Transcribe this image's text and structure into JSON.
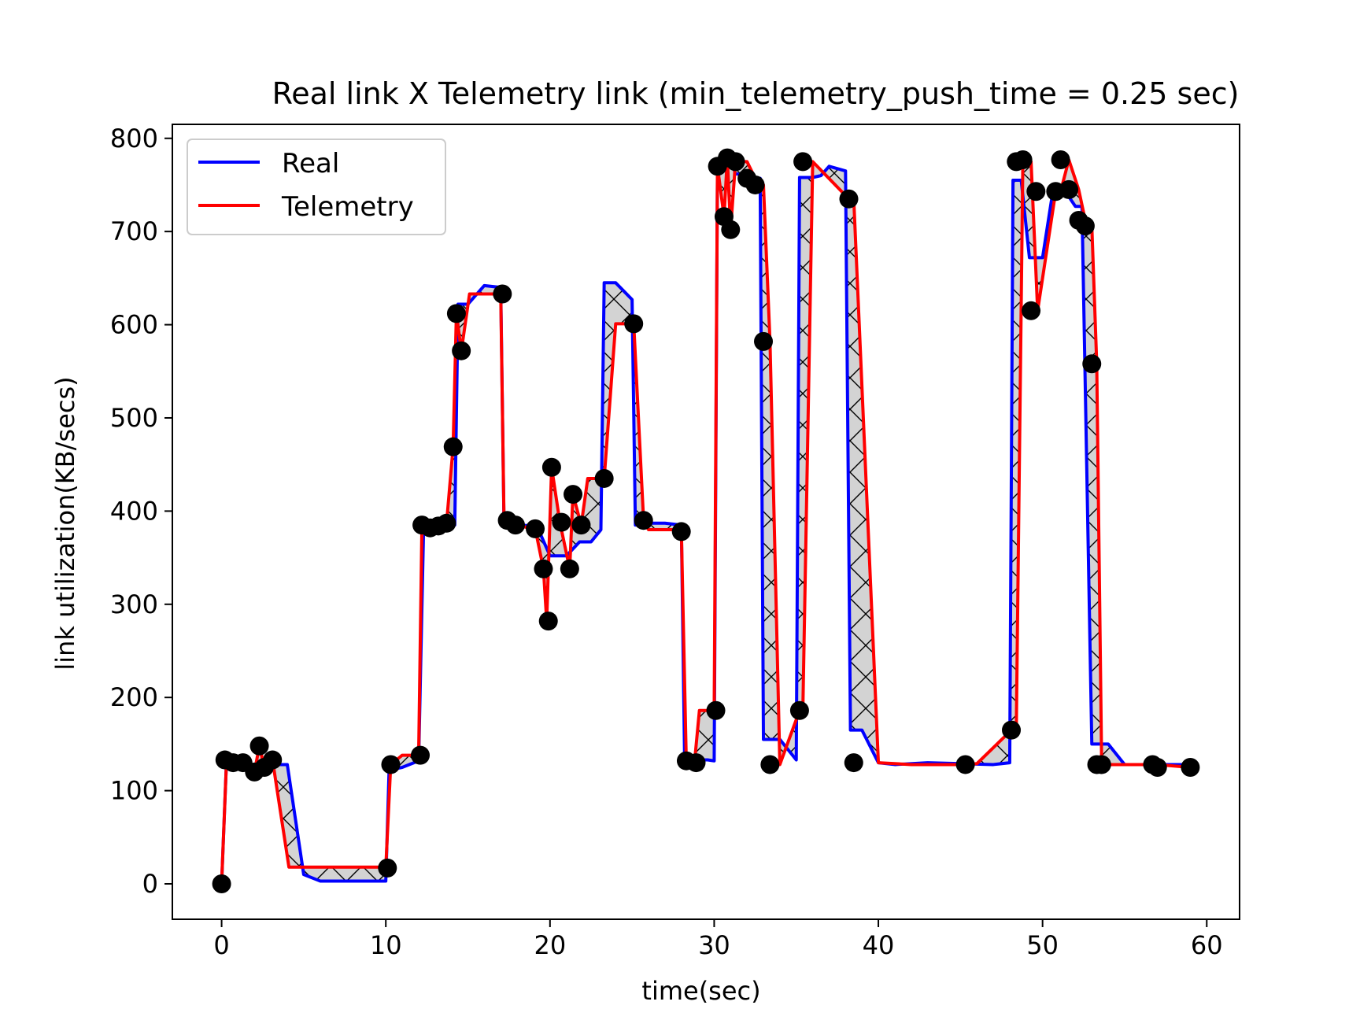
{
  "chart_data": {
    "type": "line",
    "title": "Real link X Telemetry link (min_telemetry_push_time = 0.25 sec)",
    "xlabel": "time(sec)",
    "ylabel": "link utilization(KB/secs)",
    "xlim": [
      -3,
      62
    ],
    "ylim": [
      -38,
      815
    ],
    "xticks": [
      0,
      10,
      20,
      30,
      40,
      50,
      60
    ],
    "yticks": [
      0,
      100,
      200,
      300,
      400,
      500,
      600,
      700,
      800
    ],
    "grid": false,
    "legend_position": "top-left",
    "fill_between": {
      "color": "#d3d3d3",
      "hatch": "x"
    },
    "series": [
      {
        "name": "Real",
        "color": "#0000ff",
        "x": [
          0,
          0.3,
          1,
          1.6,
          2.2,
          2.5,
          3.0,
          4.0,
          5.0,
          6.0,
          8.0,
          10.0,
          10.2,
          11.0,
          12.0,
          12.3,
          13.5,
          14.2,
          14.4,
          15.0,
          16.0,
          17.0,
          17.2,
          18.0,
          19.2,
          20.0,
          21.0,
          21.8,
          22.5,
          23.1,
          23.3,
          24.0,
          25.0,
          25.2,
          26.0,
          27.0,
          28.0,
          28.2,
          29.0,
          29.6,
          30.0,
          30.2,
          30.5,
          30.7,
          31.0,
          31.3,
          32.0,
          32.5,
          32.8,
          33.0,
          34.0,
          35.0,
          35.2,
          36.0,
          36.5,
          37.0,
          38.0,
          38.3,
          39.0,
          40.0,
          41.0,
          43.0,
          45.0,
          47.0,
          48.0,
          48.2,
          48.7,
          49.2,
          49.5,
          50.0,
          50.6,
          51.0,
          51.5,
          52.0,
          52.4,
          53.0,
          53.2,
          54.0,
          55.0,
          57.0,
          59.0
        ],
        "y": [
          0,
          133,
          128,
          130,
          122,
          128,
          128,
          128,
          10,
          3,
          3,
          3,
          122,
          125,
          132,
          380,
          382,
          385,
          622,
          622,
          642,
          640,
          385,
          385,
          384,
          352,
          352,
          367,
          367,
          380,
          645,
          645,
          627,
          385,
          387,
          387,
          385,
          133,
          133,
          133,
          132,
          770,
          775,
          765,
          777,
          762,
          760,
          757,
          757,
          155,
          155,
          133,
          758,
          758,
          760,
          770,
          765,
          165,
          165,
          130,
          128,
          130,
          129,
          128,
          130,
          755,
          755,
          672,
          672,
          672,
          740,
          740,
          740,
          727,
          727,
          150,
          150,
          150,
          128,
          128,
          128
        ]
      },
      {
        "name": "Telemetry",
        "color": "#ff0000",
        "x": [
          0,
          0.3,
          1.0,
          1.6,
          2.0,
          2.3,
          2.6,
          3.1,
          4.1,
          6.0,
          8.0,
          10.0,
          10.3,
          11.0,
          12.0,
          12.2,
          12.7,
          13.2,
          13.7,
          14.1,
          14.3,
          14.6,
          15.1,
          16.0,
          17.0,
          17.2,
          17.8,
          19.1,
          19.6,
          19.8,
          20.1,
          20.6,
          21.2,
          21.4,
          21.9,
          22.3,
          23.3,
          24.0,
          25.1,
          25.7,
          26.0,
          28.0,
          28.3,
          28.8,
          29.1,
          30.0,
          30.2,
          30.6,
          30.8,
          31.0,
          31.3,
          32.0,
          32.5,
          33.0,
          33.4,
          34.0,
          35.2,
          35.4,
          36.0,
          38.2,
          38.5,
          40.0,
          42.0,
          45.3,
          46.0,
          48.1,
          48.4,
          48.8,
          49.3,
          49.7,
          50.8,
          51.1,
          51.6,
          52.2,
          52.6,
          53.0,
          53.3,
          53.6,
          56.7,
          57.0,
          59.0
        ],
        "y": [
          0,
          133,
          130,
          130,
          120,
          148,
          125,
          133,
          18,
          18,
          18,
          18,
          128,
          138,
          138,
          385,
          382,
          384,
          387,
          469,
          612,
          572,
          633,
          633,
          633,
          390,
          385,
          381,
          338,
          282,
          447,
          388,
          338,
          418,
          385,
          435,
          435,
          601,
          601,
          390,
          380,
          380,
          132,
          130,
          186,
          186,
          770,
          716,
          779,
          702,
          775,
          775,
          757,
          750,
          582,
          128,
          186,
          186,
          775,
          735,
          735,
          130,
          128,
          128,
          129,
          165,
          165,
          775,
          775,
          615,
          743,
          743,
          777,
          745,
          712,
          706,
          558,
          128,
          128,
          128,
          125
        ],
        "markers": {
          "x": [
            0,
            0.2,
            0.7,
            1.3,
            2.0,
            2.3,
            2.6,
            3.1,
            10.1,
            10.3,
            12.1,
            12.2,
            12.7,
            13.2,
            13.7,
            14.1,
            14.3,
            14.6,
            17.1,
            17.4,
            17.9,
            19.1,
            19.6,
            19.9,
            20.1,
            20.7,
            21.2,
            21.4,
            21.9,
            23.3,
            25.1,
            25.7,
            28.0,
            28.3,
            28.9,
            30.1,
            30.2,
            30.6,
            30.8,
            31.0,
            31.3,
            32.0,
            32.5,
            33.0,
            33.4,
            35.2,
            35.4,
            38.2,
            38.5,
            45.3,
            48.1,
            48.4,
            48.8,
            49.3,
            49.6,
            50.8,
            51.1,
            51.6,
            52.2,
            52.6,
            53.0,
            53.3,
            53.6,
            56.7,
            57.0,
            59.0
          ],
          "y": [
            0,
            133,
            130,
            130,
            120,
            148,
            125,
            133,
            17,
            128,
            138,
            385,
            382,
            384,
            387,
            469,
            612,
            572,
            633,
            390,
            385,
            381,
            338,
            282,
            447,
            388,
            338,
            418,
            385,
            435,
            601,
            390,
            378,
            132,
            130,
            186,
            770,
            716,
            779,
            702,
            775,
            757,
            750,
            582,
            128,
            186,
            775,
            735,
            130,
            128,
            165,
            775,
            777,
            615,
            743,
            743,
            777,
            745,
            712,
            706,
            558,
            128,
            128,
            128,
            125,
            125
          ]
        }
      }
    ]
  }
}
